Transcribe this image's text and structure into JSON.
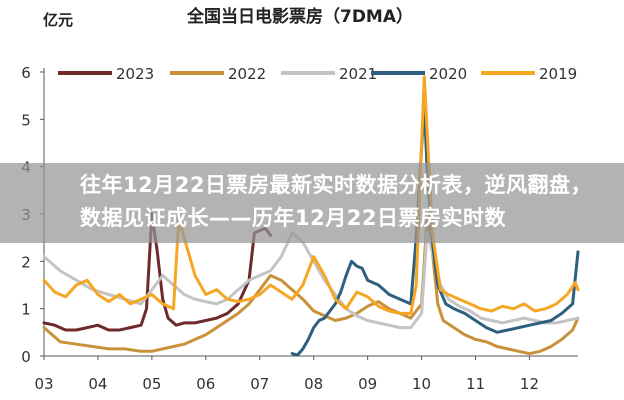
{
  "chart_data": {
    "type": "line",
    "title": "全国当日电影票房（7DMA）",
    "ylabel": "亿元",
    "ylim": [
      0,
      6
    ],
    "yticks": [
      0,
      1,
      2,
      3,
      4,
      5,
      6
    ],
    "xticks": [
      "03",
      "04",
      "05",
      "06",
      "07",
      "08",
      "09",
      "10",
      "11",
      "12"
    ],
    "legend": "top",
    "series": [
      {
        "name": "2023",
        "color": "#6e2a2a",
        "x": [
          3.0,
          3.2,
          3.4,
          3.6,
          3.8,
          4.0,
          4.2,
          4.4,
          4.6,
          4.8,
          4.9,
          5.0,
          5.1,
          5.2,
          5.3,
          5.45,
          5.6,
          5.8,
          6.0,
          6.2,
          6.4,
          6.6,
          6.8,
          6.9,
          7.0,
          7.1,
          7.2
        ],
        "y": [
          0.7,
          0.65,
          0.55,
          0.55,
          0.6,
          0.65,
          0.55,
          0.55,
          0.6,
          0.65,
          1.0,
          3.0,
          2.2,
          1.2,
          0.8,
          0.65,
          0.7,
          0.7,
          0.75,
          0.8,
          0.9,
          1.1,
          1.6,
          2.6,
          2.65,
          2.7,
          2.55
        ]
      },
      {
        "name": "2022",
        "color": "#c8913a",
        "x": [
          3.0,
          3.3,
          3.6,
          3.9,
          4.2,
          4.5,
          4.8,
          5.0,
          5.2,
          5.4,
          5.6,
          5.8,
          6.0,
          6.2,
          6.4,
          6.6,
          6.8,
          7.0,
          7.2,
          7.4,
          7.6,
          7.8,
          8.0,
          8.2,
          8.4,
          8.6,
          8.8,
          9.0,
          9.2,
          9.4,
          9.6,
          9.8,
          10.0,
          10.1,
          10.2,
          10.3,
          10.4,
          10.6,
          10.8,
          11.0,
          11.2,
          11.4,
          11.6,
          11.8,
          12.0,
          12.2,
          12.4,
          12.6,
          12.8,
          12.9
        ],
        "y": [
          0.6,
          0.3,
          0.25,
          0.2,
          0.15,
          0.15,
          0.1,
          0.1,
          0.15,
          0.2,
          0.25,
          0.35,
          0.45,
          0.6,
          0.75,
          0.9,
          1.1,
          1.4,
          1.7,
          1.6,
          1.4,
          1.2,
          0.95,
          0.85,
          0.75,
          0.8,
          0.9,
          1.05,
          1.15,
          1.0,
          0.9,
          0.8,
          1.1,
          2.9,
          2.2,
          1.1,
          0.75,
          0.6,
          0.45,
          0.35,
          0.3,
          0.2,
          0.15,
          0.1,
          0.05,
          0.1,
          0.2,
          0.35,
          0.55,
          0.8
        ]
      },
      {
        "name": "2021",
        "color": "#c4c4c4",
        "x": [
          3.0,
          3.3,
          3.6,
          3.9,
          4.2,
          4.5,
          4.8,
          5.0,
          5.2,
          5.4,
          5.6,
          5.8,
          6.0,
          6.2,
          6.4,
          6.6,
          6.8,
          7.0,
          7.2,
          7.4,
          7.6,
          7.8,
          8.0,
          8.2,
          8.4,
          8.6,
          8.8,
          9.0,
          9.2,
          9.4,
          9.6,
          9.8,
          10.0,
          10.1,
          10.2,
          10.35,
          10.5,
          10.7,
          10.9,
          11.1,
          11.3,
          11.5,
          11.7,
          11.9,
          12.1,
          12.3,
          12.5,
          12.7,
          12.9
        ],
        "y": [
          2.1,
          1.8,
          1.6,
          1.4,
          1.3,
          1.2,
          1.1,
          1.4,
          1.7,
          1.5,
          1.3,
          1.2,
          1.15,
          1.1,
          1.2,
          1.4,
          1.6,
          1.7,
          1.8,
          2.1,
          2.6,
          2.4,
          2.0,
          1.6,
          1.3,
          1.0,
          0.85,
          0.75,
          0.7,
          0.65,
          0.6,
          0.6,
          0.9,
          2.6,
          2.2,
          1.5,
          1.2,
          1.05,
          0.95,
          0.8,
          0.75,
          0.7,
          0.75,
          0.8,
          0.75,
          0.7,
          0.7,
          0.75,
          0.8
        ]
      },
      {
        "name": "2020",
        "color": "#2e5f7f",
        "x": [
          7.6,
          7.7,
          7.8,
          7.9,
          8.0,
          8.1,
          8.2,
          8.3,
          8.4,
          8.5,
          8.6,
          8.7,
          8.8,
          8.9,
          9.0,
          9.2,
          9.4,
          9.6,
          9.8,
          9.9,
          10.0,
          10.05,
          10.1,
          10.2,
          10.3,
          10.45,
          10.6,
          10.8,
          11.0,
          11.2,
          11.4,
          11.6,
          11.8,
          12.0,
          12.2,
          12.4,
          12.6,
          12.8,
          12.9
        ],
        "y": [
          0.05,
          0.02,
          0.15,
          0.35,
          0.6,
          0.75,
          0.8,
          0.95,
          1.1,
          1.35,
          1.7,
          2.0,
          1.9,
          1.85,
          1.6,
          1.5,
          1.3,
          1.2,
          1.1,
          2.5,
          4.4,
          5.3,
          4.0,
          2.4,
          1.5,
          1.1,
          1.0,
          0.9,
          0.75,
          0.6,
          0.5,
          0.55,
          0.6,
          0.65,
          0.7,
          0.75,
          0.9,
          1.1,
          2.2
        ]
      },
      {
        "name": "2019",
        "color": "#f5a623",
        "x": [
          3.0,
          3.2,
          3.4,
          3.6,
          3.8,
          4.0,
          4.2,
          4.4,
          4.6,
          4.8,
          5.0,
          5.2,
          5.4,
          5.5,
          5.6,
          5.8,
          6.0,
          6.2,
          6.4,
          6.6,
          6.8,
          7.0,
          7.2,
          7.4,
          7.6,
          7.8,
          8.0,
          8.2,
          8.4,
          8.6,
          8.8,
          9.0,
          9.2,
          9.4,
          9.6,
          9.8,
          9.9,
          10.0,
          10.05,
          10.1,
          10.2,
          10.35,
          10.5,
          10.7,
          10.9,
          11.1,
          11.3,
          11.5,
          11.7,
          11.9,
          12.1,
          12.3,
          12.5,
          12.7,
          12.85,
          12.9
        ],
        "y": [
          1.6,
          1.35,
          1.25,
          1.5,
          1.6,
          1.3,
          1.15,
          1.3,
          1.1,
          1.2,
          1.3,
          1.1,
          1.0,
          2.9,
          2.5,
          1.7,
          1.3,
          1.4,
          1.2,
          1.15,
          1.2,
          1.3,
          1.5,
          1.35,
          1.2,
          1.5,
          2.1,
          1.7,
          1.2,
          1.0,
          1.35,
          1.25,
          1.05,
          0.95,
          0.9,
          0.9,
          1.5,
          4.5,
          5.9,
          4.8,
          2.6,
          1.4,
          1.3,
          1.2,
          1.1,
          1.0,
          0.95,
          1.05,
          1.0,
          1.1,
          0.95,
          1.0,
          1.1,
          1.3,
          1.55,
          1.4
        ]
      }
    ]
  },
  "overlay": {
    "headline": "往年12月22日票房最新实时数据分析表，逆风翻盘，数据见证成长——历年12月22日票房实时数"
  }
}
